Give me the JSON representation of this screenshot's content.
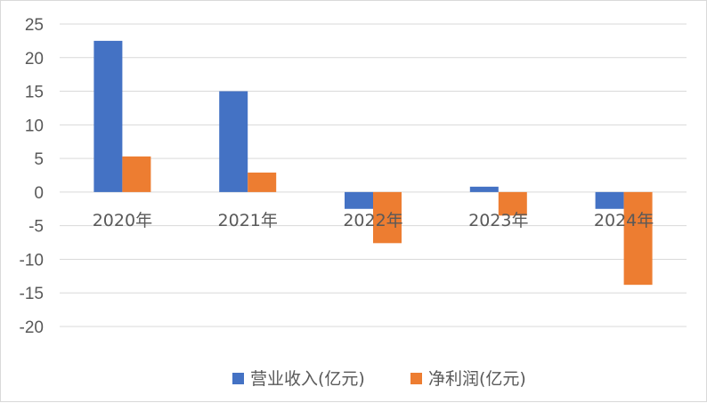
{
  "chart_data": {
    "type": "bar",
    "title": "",
    "xlabel": "",
    "ylabel": "",
    "categories": [
      "2020年",
      "2021年",
      "2022年",
      "2023年",
      "2024年"
    ],
    "series": [
      {
        "name": "营业收入(亿元)",
        "color": "#4472c4",
        "values": [
          22.5,
          15.0,
          -2.5,
          0.8,
          -2.5
        ]
      },
      {
        "name": "净利润(亿元)",
        "color": "#ed7d31",
        "values": [
          5.3,
          2.9,
          -7.6,
          -3.5,
          -13.8
        ]
      }
    ],
    "ylim": [
      -20,
      25
    ],
    "yticks": [
      25,
      20,
      15,
      10,
      5,
      0,
      -5,
      -10,
      -15,
      -20
    ],
    "grid": true,
    "legend": "bottom"
  }
}
